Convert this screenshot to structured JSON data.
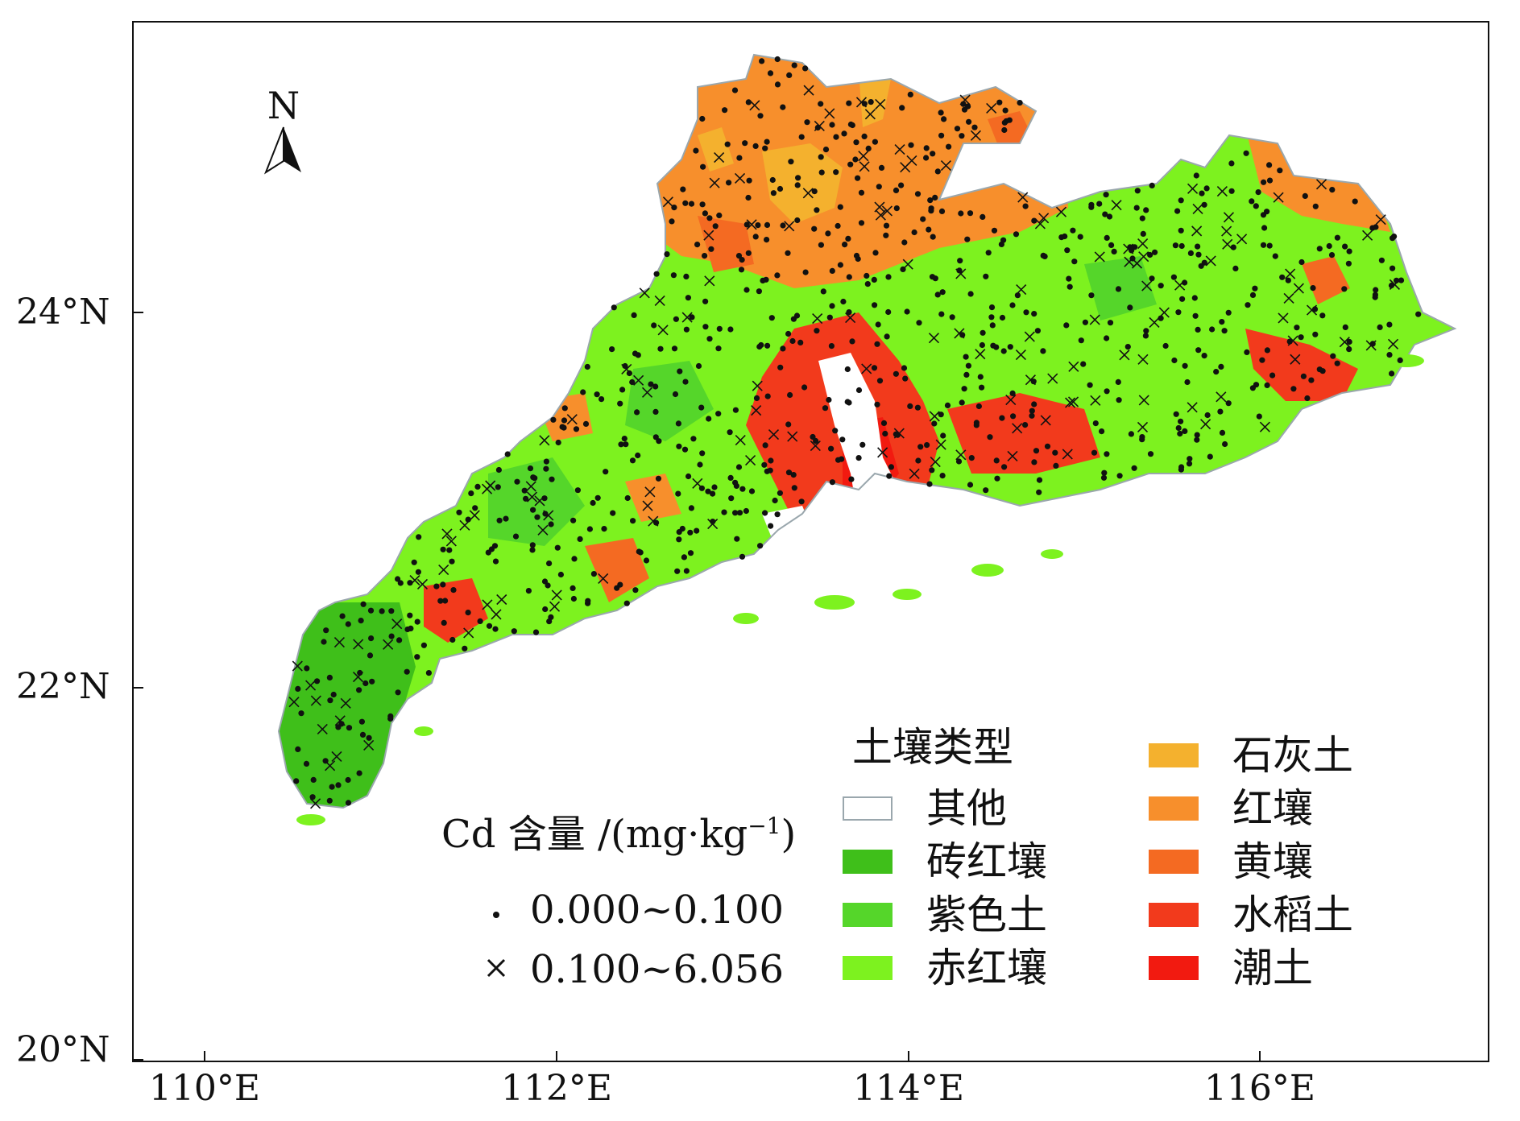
{
  "map": {
    "north_label": "N",
    "lat_labels": [
      "24°N",
      "22°N",
      "20°N"
    ],
    "lon_labels": [
      "110°E",
      "112°E",
      "114°E",
      "116°E"
    ],
    "colors": {
      "其他": "#ffffff",
      "砖红壤": "#3fbf1a",
      "紫色土": "#55d62a",
      "赤红壤": "#7df21f",
      "石灰土": "#f4b12e",
      "红壤": "#f78f2c",
      "黄壤": "#f46a22",
      "水稻土": "#f23a1c",
      "潮土": "#f21a10",
      "outline": "#9aa7ad"
    }
  },
  "legend": {
    "title": "土壤类型",
    "left": [
      {
        "label": "其他",
        "color": "#ffffff"
      },
      {
        "label": "砖红壤",
        "color": "#3fbf1a"
      },
      {
        "label": "紫色土",
        "color": "#55d62a"
      },
      {
        "label": "赤红壤",
        "color": "#7df21f"
      }
    ],
    "right": [
      {
        "label": "石灰土",
        "color": "#f4b12e"
      },
      {
        "label": "红壤",
        "color": "#f78f2c"
      },
      {
        "label": "黄壤",
        "color": "#f46a22"
      },
      {
        "label": "水稻土",
        "color": "#f23a1c"
      },
      {
        "label": "潮土",
        "color": "#f21a10"
      }
    ]
  },
  "cd_legend": {
    "title_main": "Cd 含量 /(mg·kg",
    "title_sup": "−1",
    "title_end": ")",
    "items": [
      {
        "symbol": "dot-icon",
        "range": "0.000~0.100"
      },
      {
        "symbol": "cross-icon",
        "range": "0.100~6.056"
      }
    ]
  }
}
